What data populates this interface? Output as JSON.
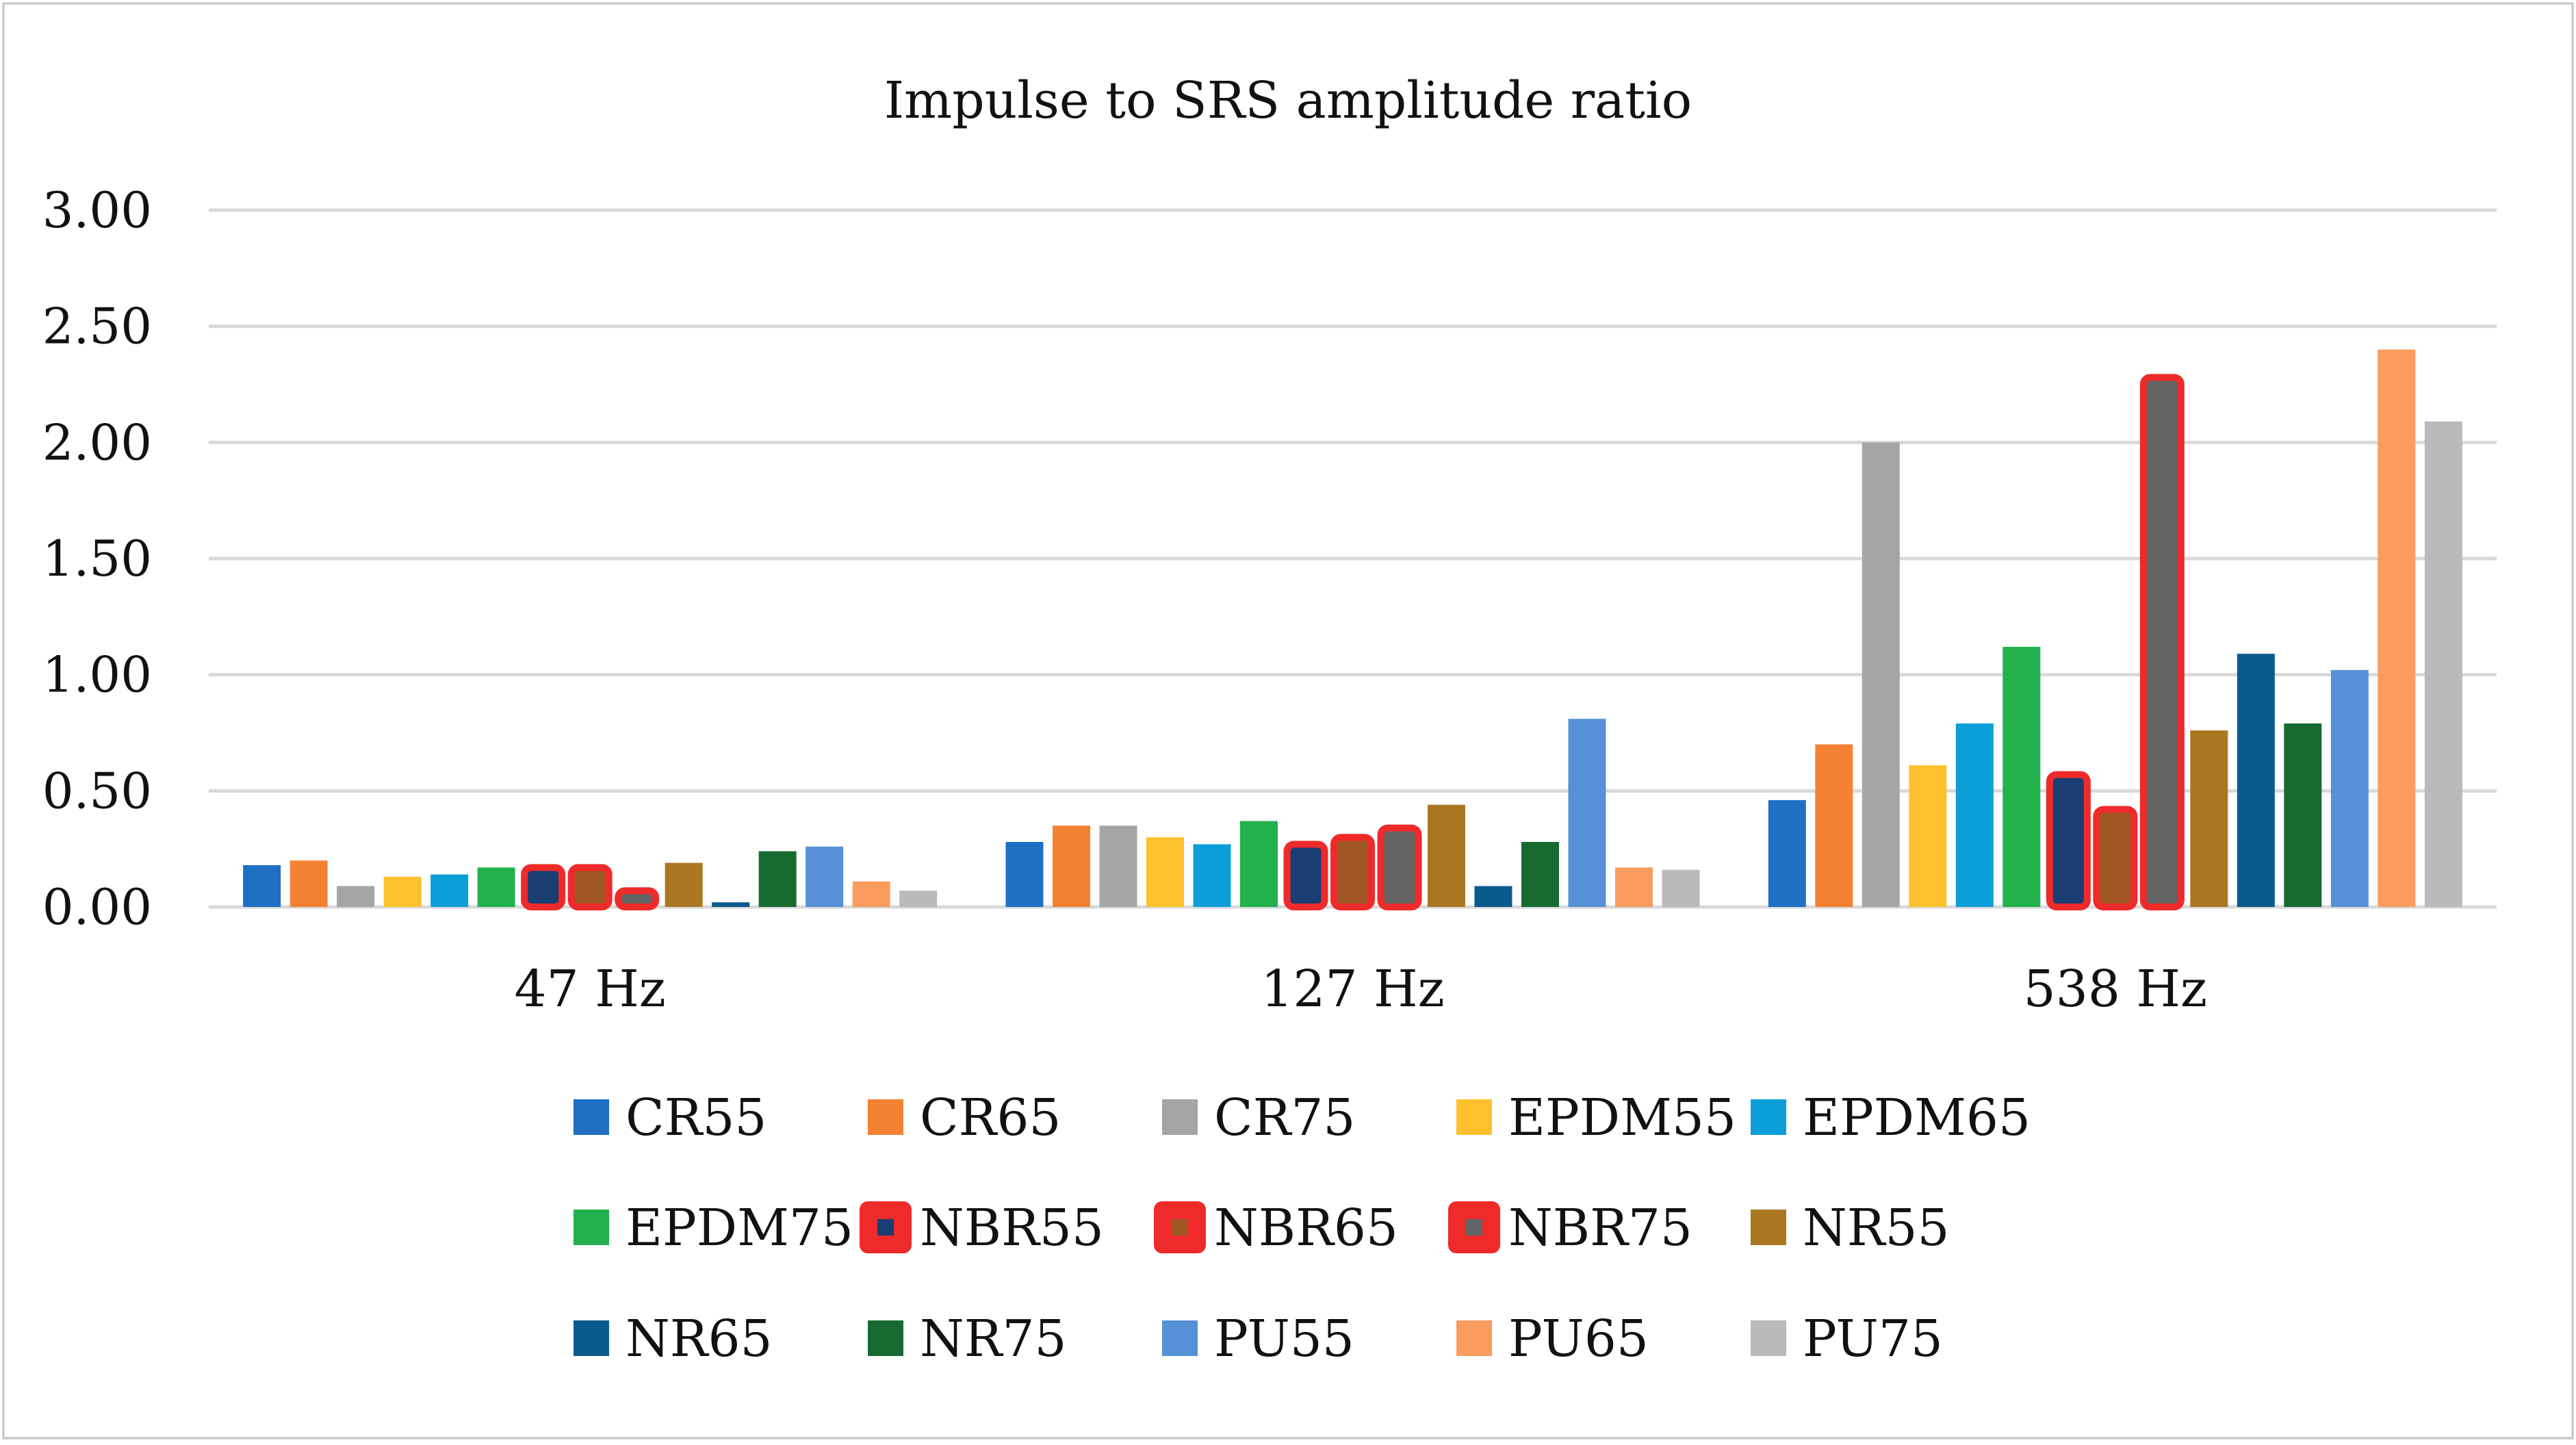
{
  "chart_data": {
    "type": "bar",
    "title": "Impulse to SRS amplitude ratio",
    "xlabel": "",
    "ylabel": "",
    "ylim": [
      0,
      3
    ],
    "yticks": [
      "0.00",
      "0.50",
      "1.00",
      "1.50",
      "2.00",
      "2.50",
      "3.00"
    ],
    "ytick_values": [
      0,
      0.5,
      1,
      1.5,
      2,
      2.5,
      3
    ],
    "grid": true,
    "legend_position": "bottom",
    "categories": [
      "47 Hz",
      "127 Hz",
      "538 Hz"
    ],
    "series": [
      {
        "name": "CR55",
        "color": "#1F6FC5",
        "values": [
          0.18,
          0.28,
          0.46
        ]
      },
      {
        "name": "CR65",
        "color": "#F58232",
        "values": [
          0.2,
          0.35,
          0.7
        ]
      },
      {
        "name": "CR75",
        "color": "#A5A5A5",
        "values": [
          0.09,
          0.35,
          2.0
        ]
      },
      {
        "name": "EPDM55",
        "color": "#FEC12D",
        "values": [
          0.13,
          0.3,
          0.61
        ]
      },
      {
        "name": "EPDM65",
        "color": "#0B9ED9",
        "values": [
          0.14,
          0.27,
          0.79
        ]
      },
      {
        "name": "EPDM75",
        "color": "#22B14C",
        "values": [
          0.17,
          0.37,
          1.12
        ]
      },
      {
        "name": "NBR55",
        "color": "#1A3E72",
        "outline": "#EE2A2A",
        "values": [
          0.17,
          0.27,
          0.57
        ]
      },
      {
        "name": "NBR65",
        "color": "#9F5522",
        "outline": "#EE2A2A",
        "values": [
          0.17,
          0.3,
          0.42
        ]
      },
      {
        "name": "NBR75",
        "color": "#636363",
        "outline": "#EE2A2A",
        "values": [
          0.07,
          0.34,
          2.28
        ]
      },
      {
        "name": "NR55",
        "color": "#A97721",
        "values": [
          0.19,
          0.44,
          0.76
        ]
      },
      {
        "name": "NR65",
        "color": "#0B5A8E",
        "values": [
          0.02,
          0.09,
          1.09
        ]
      },
      {
        "name": "NR75",
        "color": "#186B30",
        "values": [
          0.24,
          0.28,
          0.79
        ]
      },
      {
        "name": "PU55",
        "color": "#5691D6",
        "values": [
          0.26,
          0.81,
          1.02
        ]
      },
      {
        "name": "PU65",
        "color": "#F99C5E",
        "values": [
          0.11,
          0.17,
          2.4
        ]
      },
      {
        "name": "PU75",
        "color": "#BABABA",
        "values": [
          0.07,
          0.16,
          2.09
        ]
      }
    ]
  }
}
